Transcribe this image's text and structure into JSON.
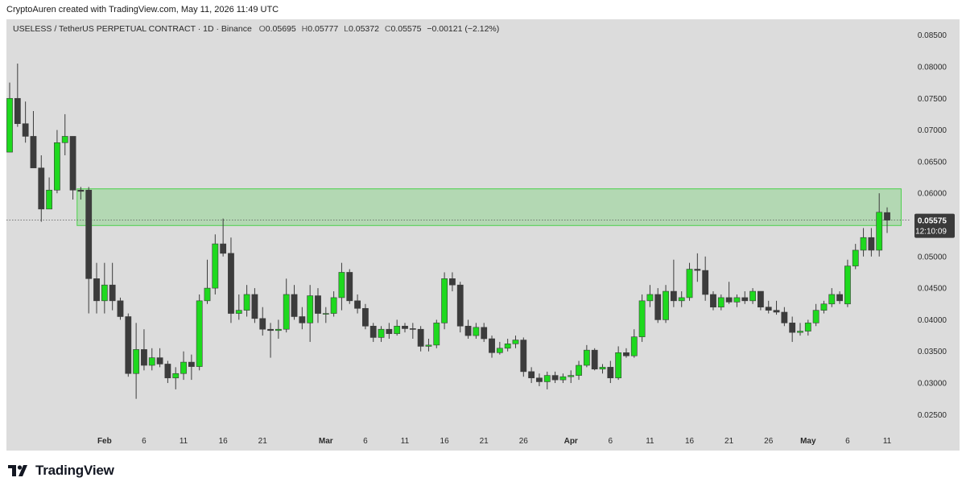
{
  "caption": "CryptoAuren created with TradingView.com, May 11, 2026 11:49 UTC",
  "legend": {
    "symbol": "USELESS / TetherUS PERPETUAL CONTRACT · 1D · Binance",
    "o_label": "O",
    "o": "0.05695",
    "h_label": "H",
    "h": "0.05777",
    "l_label": "L",
    "l": "0.05372",
    "c_label": "C",
    "c": "0.05575",
    "change": "−0.00121 (−2.12%)"
  },
  "brand": {
    "name": "TradingView",
    "logo": "tradingview-logo"
  },
  "chart_data": {
    "type": "candlestick",
    "ylim": [
      0.0225,
      0.0875
    ],
    "y_ticks": [
      "0.08500",
      "0.08000",
      "0.07500",
      "0.07000",
      "0.06500",
      "0.06000",
      "0.05500",
      "0.05000",
      "0.04500",
      "0.04000",
      "0.03500",
      "0.03000",
      "0.02500"
    ],
    "x_ticks": [
      {
        "label": "21",
        "date": "2025-12-21",
        "bold": false
      },
      {
        "label": "26",
        "date": "2025-12-26",
        "bold": false
      },
      {
        "label": "Feb",
        "date": "2026-02-01",
        "bold": true
      },
      {
        "label": "6",
        "date": "2026-02-06",
        "bold": false
      },
      {
        "label": "11",
        "date": "2026-02-11",
        "bold": false
      },
      {
        "label": "16",
        "date": "2026-02-16",
        "bold": false
      },
      {
        "label": "21",
        "date": "2026-02-21",
        "bold": false
      },
      {
        "label": "Mar",
        "date": "2026-03-01",
        "bold": true
      },
      {
        "label": "6",
        "date": "2026-03-06",
        "bold": false
      },
      {
        "label": "11",
        "date": "2026-03-11",
        "bold": false
      },
      {
        "label": "16",
        "date": "2026-03-16",
        "bold": false
      },
      {
        "label": "21",
        "date": "2026-03-21",
        "bold": false
      },
      {
        "label": "26",
        "date": "2026-03-26",
        "bold": false
      },
      {
        "label": "Apr",
        "date": "2026-04-01",
        "bold": true
      },
      {
        "label": "6",
        "date": "2026-04-06",
        "bold": false
      },
      {
        "label": "11",
        "date": "2026-04-11",
        "bold": false
      },
      {
        "label": "16",
        "date": "2026-04-16",
        "bold": false
      },
      {
        "label": "21",
        "date": "2026-04-21",
        "bold": false
      },
      {
        "label": "26",
        "date": "2026-04-26",
        "bold": false
      },
      {
        "label": "May",
        "date": "2026-05-01",
        "bold": true
      },
      {
        "label": "6",
        "date": "2026-05-06",
        "bold": false
      },
      {
        "label": "11",
        "date": "2026-05-11",
        "bold": false
      }
    ],
    "candles": [
      {
        "date": "2026-01-20",
        "o": 0.0665,
        "h": 0.0775,
        "l": 0.0665,
        "c": 0.075
      },
      {
        "date": "2026-01-21",
        "o": 0.075,
        "h": 0.0805,
        "l": 0.0705,
        "c": 0.071
      },
      {
        "date": "2026-01-22",
        "o": 0.071,
        "h": 0.0745,
        "l": 0.068,
        "c": 0.069
      },
      {
        "date": "2026-01-23",
        "o": 0.069,
        "h": 0.073,
        "l": 0.064,
        "c": 0.064
      },
      {
        "date": "2026-01-24",
        "o": 0.064,
        "h": 0.066,
        "l": 0.0555,
        "c": 0.0575
      },
      {
        "date": "2026-01-25",
        "o": 0.0575,
        "h": 0.0625,
        "l": 0.0575,
        "c": 0.0605
      },
      {
        "date": "2026-01-26",
        "o": 0.0605,
        "h": 0.07,
        "l": 0.06,
        "c": 0.068
      },
      {
        "date": "2026-01-27",
        "o": 0.068,
        "h": 0.0725,
        "l": 0.066,
        "c": 0.069
      },
      {
        "date": "2026-01-28",
        "o": 0.069,
        "h": 0.069,
        "l": 0.059,
        "c": 0.0605
      },
      {
        "date": "2026-01-29",
        "o": 0.0605,
        "h": 0.061,
        "l": 0.059,
        "c": 0.0603
      },
      {
        "date": "2026-01-30",
        "o": 0.0605,
        "h": 0.061,
        "l": 0.041,
        "c": 0.0465
      },
      {
        "date": "2026-01-31",
        "o": 0.0465,
        "h": 0.049,
        "l": 0.041,
        "c": 0.043
      },
      {
        "date": "2026-02-01",
        "o": 0.043,
        "h": 0.049,
        "l": 0.041,
        "c": 0.0455
      },
      {
        "date": "2026-02-02",
        "o": 0.0455,
        "h": 0.049,
        "l": 0.0415,
        "c": 0.043
      },
      {
        "date": "2026-02-03",
        "o": 0.043,
        "h": 0.0435,
        "l": 0.04,
        "c": 0.0405
      },
      {
        "date": "2026-02-04",
        "o": 0.0405,
        "h": 0.041,
        "l": 0.031,
        "c": 0.0315
      },
      {
        "date": "2026-02-05",
        "o": 0.0315,
        "h": 0.0395,
        "l": 0.0275,
        "c": 0.0353
      },
      {
        "date": "2026-02-06",
        "o": 0.0353,
        "h": 0.0385,
        "l": 0.032,
        "c": 0.0328
      },
      {
        "date": "2026-02-07",
        "o": 0.0328,
        "h": 0.0355,
        "l": 0.032,
        "c": 0.034
      },
      {
        "date": "2026-02-08",
        "o": 0.034,
        "h": 0.0355,
        "l": 0.0325,
        "c": 0.033
      },
      {
        "date": "2026-02-09",
        "o": 0.033,
        "h": 0.0335,
        "l": 0.03,
        "c": 0.0308
      },
      {
        "date": "2026-02-10",
        "o": 0.0308,
        "h": 0.0325,
        "l": 0.029,
        "c": 0.0315
      },
      {
        "date": "2026-02-11",
        "o": 0.0315,
        "h": 0.035,
        "l": 0.0305,
        "c": 0.0333
      },
      {
        "date": "2026-02-12",
        "o": 0.0333,
        "h": 0.0345,
        "l": 0.0305,
        "c": 0.0326
      },
      {
        "date": "2026-02-13",
        "o": 0.0326,
        "h": 0.044,
        "l": 0.032,
        "c": 0.043
      },
      {
        "date": "2026-02-14",
        "o": 0.043,
        "h": 0.0495,
        "l": 0.0425,
        "c": 0.045
      },
      {
        "date": "2026-02-15",
        "o": 0.045,
        "h": 0.0535,
        "l": 0.044,
        "c": 0.052
      },
      {
        "date": "2026-02-16",
        "o": 0.052,
        "h": 0.056,
        "l": 0.05,
        "c": 0.0505
      },
      {
        "date": "2026-02-17",
        "o": 0.0505,
        "h": 0.053,
        "l": 0.0395,
        "c": 0.041
      },
      {
        "date": "2026-02-18",
        "o": 0.041,
        "h": 0.044,
        "l": 0.04,
        "c": 0.0415
      },
      {
        "date": "2026-02-19",
        "o": 0.0415,
        "h": 0.0455,
        "l": 0.0405,
        "c": 0.044
      },
      {
        "date": "2026-02-20",
        "o": 0.044,
        "h": 0.045,
        "l": 0.0395,
        "c": 0.0402
      },
      {
        "date": "2026-02-21",
        "o": 0.0402,
        "h": 0.042,
        "l": 0.0375,
        "c": 0.0385
      },
      {
        "date": "2026-02-22",
        "o": 0.0385,
        "h": 0.0395,
        "l": 0.034,
        "c": 0.0383
      },
      {
        "date": "2026-02-23",
        "o": 0.0383,
        "h": 0.04,
        "l": 0.037,
        "c": 0.0385
      },
      {
        "date": "2026-02-24",
        "o": 0.0385,
        "h": 0.0465,
        "l": 0.038,
        "c": 0.044
      },
      {
        "date": "2026-02-25",
        "o": 0.044,
        "h": 0.0455,
        "l": 0.04,
        "c": 0.0405
      },
      {
        "date": "2026-02-26",
        "o": 0.0405,
        "h": 0.042,
        "l": 0.0385,
        "c": 0.0395
      },
      {
        "date": "2026-02-27",
        "o": 0.0395,
        "h": 0.0455,
        "l": 0.0365,
        "c": 0.0438
      },
      {
        "date": "2026-02-28",
        "o": 0.0438,
        "h": 0.045,
        "l": 0.0395,
        "c": 0.041
      },
      {
        "date": "2026-03-01",
        "o": 0.041,
        "h": 0.042,
        "l": 0.0395,
        "c": 0.041
      },
      {
        "date": "2026-03-02",
        "o": 0.041,
        "h": 0.0445,
        "l": 0.0405,
        "c": 0.0435
      },
      {
        "date": "2026-03-03",
        "o": 0.0435,
        "h": 0.049,
        "l": 0.0415,
        "c": 0.0475
      },
      {
        "date": "2026-03-04",
        "o": 0.0475,
        "h": 0.048,
        "l": 0.0425,
        "c": 0.043
      },
      {
        "date": "2026-03-05",
        "o": 0.043,
        "h": 0.044,
        "l": 0.041,
        "c": 0.0418
      },
      {
        "date": "2026-03-06",
        "o": 0.0418,
        "h": 0.0425,
        "l": 0.0385,
        "c": 0.039
      },
      {
        "date": "2026-03-07",
        "o": 0.039,
        "h": 0.0395,
        "l": 0.0365,
        "c": 0.0372
      },
      {
        "date": "2026-03-08",
        "o": 0.0372,
        "h": 0.039,
        "l": 0.0365,
        "c": 0.0385
      },
      {
        "date": "2026-03-09",
        "o": 0.0385,
        "h": 0.0395,
        "l": 0.037,
        "c": 0.0378
      },
      {
        "date": "2026-03-10",
        "o": 0.0378,
        "h": 0.04,
        "l": 0.0375,
        "c": 0.039
      },
      {
        "date": "2026-03-11",
        "o": 0.039,
        "h": 0.0395,
        "l": 0.038,
        "c": 0.0386
      },
      {
        "date": "2026-03-12",
        "o": 0.0386,
        "h": 0.0395,
        "l": 0.037,
        "c": 0.0385
      },
      {
        "date": "2026-03-13",
        "o": 0.0385,
        "h": 0.039,
        "l": 0.035,
        "c": 0.0358
      },
      {
        "date": "2026-03-14",
        "o": 0.0358,
        "h": 0.037,
        "l": 0.035,
        "c": 0.036
      },
      {
        "date": "2026-03-15",
        "o": 0.036,
        "h": 0.04,
        "l": 0.0355,
        "c": 0.0395
      },
      {
        "date": "2026-03-16",
        "o": 0.0395,
        "h": 0.0475,
        "l": 0.0385,
        "c": 0.0465
      },
      {
        "date": "2026-03-17",
        "o": 0.0465,
        "h": 0.0475,
        "l": 0.0445,
        "c": 0.0455
      },
      {
        "date": "2026-03-18",
        "o": 0.0455,
        "h": 0.046,
        "l": 0.038,
        "c": 0.039
      },
      {
        "date": "2026-03-19",
        "o": 0.039,
        "h": 0.04,
        "l": 0.037,
        "c": 0.0375
      },
      {
        "date": "2026-03-20",
        "o": 0.0375,
        "h": 0.0395,
        "l": 0.037,
        "c": 0.0388
      },
      {
        "date": "2026-03-21",
        "o": 0.0388,
        "h": 0.0395,
        "l": 0.0365,
        "c": 0.037
      },
      {
        "date": "2026-03-22",
        "o": 0.037,
        "h": 0.0375,
        "l": 0.034,
        "c": 0.0348
      },
      {
        "date": "2026-03-23",
        "o": 0.0348,
        "h": 0.0365,
        "l": 0.0345,
        "c": 0.0355
      },
      {
        "date": "2026-03-24",
        "o": 0.0355,
        "h": 0.037,
        "l": 0.035,
        "c": 0.0362
      },
      {
        "date": "2026-03-25",
        "o": 0.0362,
        "h": 0.0375,
        "l": 0.0355,
        "c": 0.0368
      },
      {
        "date": "2026-03-26",
        "o": 0.0368,
        "h": 0.0372,
        "l": 0.031,
        "c": 0.0318
      },
      {
        "date": "2026-03-27",
        "o": 0.0318,
        "h": 0.0325,
        "l": 0.03,
        "c": 0.0308
      },
      {
        "date": "2026-03-28",
        "o": 0.0308,
        "h": 0.0315,
        "l": 0.0295,
        "c": 0.0302
      },
      {
        "date": "2026-03-29",
        "o": 0.0302,
        "h": 0.0318,
        "l": 0.029,
        "c": 0.0312
      },
      {
        "date": "2026-03-30",
        "o": 0.0312,
        "h": 0.0318,
        "l": 0.03,
        "c": 0.0305
      },
      {
        "date": "2026-03-31",
        "o": 0.0305,
        "h": 0.0315,
        "l": 0.03,
        "c": 0.031
      },
      {
        "date": "2026-04-01",
        "o": 0.031,
        "h": 0.032,
        "l": 0.03,
        "c": 0.0312
      },
      {
        "date": "2026-04-02",
        "o": 0.0312,
        "h": 0.0335,
        "l": 0.0305,
        "c": 0.0328
      },
      {
        "date": "2026-04-03",
        "o": 0.0328,
        "h": 0.036,
        "l": 0.0325,
        "c": 0.0352
      },
      {
        "date": "2026-04-04",
        "o": 0.0352,
        "h": 0.0355,
        "l": 0.032,
        "c": 0.0322
      },
      {
        "date": "2026-04-05",
        "o": 0.0322,
        "h": 0.033,
        "l": 0.0315,
        "c": 0.0325
      },
      {
        "date": "2026-04-06",
        "o": 0.0325,
        "h": 0.0335,
        "l": 0.03,
        "c": 0.0308
      },
      {
        "date": "2026-04-07",
        "o": 0.0308,
        "h": 0.0358,
        "l": 0.0305,
        "c": 0.0348
      },
      {
        "date": "2026-04-08",
        "o": 0.0348,
        "h": 0.0355,
        "l": 0.034,
        "c": 0.0343
      },
      {
        "date": "2026-04-09",
        "o": 0.0343,
        "h": 0.0385,
        "l": 0.034,
        "c": 0.0373
      },
      {
        "date": "2026-04-10",
        "o": 0.0373,
        "h": 0.044,
        "l": 0.0365,
        "c": 0.043
      },
      {
        "date": "2026-04-11",
        "o": 0.043,
        "h": 0.0455,
        "l": 0.042,
        "c": 0.044
      },
      {
        "date": "2026-04-12",
        "o": 0.044,
        "h": 0.045,
        "l": 0.0395,
        "c": 0.04
      },
      {
        "date": "2026-04-13",
        "o": 0.04,
        "h": 0.0455,
        "l": 0.0395,
        "c": 0.0445
      },
      {
        "date": "2026-04-14",
        "o": 0.0445,
        "h": 0.0495,
        "l": 0.042,
        "c": 0.043
      },
      {
        "date": "2026-04-15",
        "o": 0.043,
        "h": 0.0445,
        "l": 0.042,
        "c": 0.0435
      },
      {
        "date": "2026-04-16",
        "o": 0.0435,
        "h": 0.049,
        "l": 0.043,
        "c": 0.048
      },
      {
        "date": "2026-04-17",
        "o": 0.048,
        "h": 0.0505,
        "l": 0.046,
        "c": 0.0478
      },
      {
        "date": "2026-04-18",
        "o": 0.0478,
        "h": 0.05,
        "l": 0.043,
        "c": 0.044
      },
      {
        "date": "2026-04-19",
        "o": 0.044,
        "h": 0.0445,
        "l": 0.0415,
        "c": 0.042
      },
      {
        "date": "2026-04-20",
        "o": 0.042,
        "h": 0.044,
        "l": 0.0415,
        "c": 0.0435
      },
      {
        "date": "2026-04-21",
        "o": 0.0435,
        "h": 0.046,
        "l": 0.0425,
        "c": 0.0428
      },
      {
        "date": "2026-04-22",
        "o": 0.0428,
        "h": 0.044,
        "l": 0.042,
        "c": 0.0435
      },
      {
        "date": "2026-04-23",
        "o": 0.0435,
        "h": 0.0445,
        "l": 0.0425,
        "c": 0.043
      },
      {
        "date": "2026-04-24",
        "o": 0.043,
        "h": 0.045,
        "l": 0.0425,
        "c": 0.0445
      },
      {
        "date": "2026-04-25",
        "o": 0.0445,
        "h": 0.0445,
        "l": 0.0415,
        "c": 0.042
      },
      {
        "date": "2026-04-26",
        "o": 0.042,
        "h": 0.043,
        "l": 0.041,
        "c": 0.0415
      },
      {
        "date": "2026-04-27",
        "o": 0.0415,
        "h": 0.043,
        "l": 0.0408,
        "c": 0.0412
      },
      {
        "date": "2026-04-28",
        "o": 0.0412,
        "h": 0.042,
        "l": 0.039,
        "c": 0.0395
      },
      {
        "date": "2026-04-29",
        "o": 0.0395,
        "h": 0.0405,
        "l": 0.0365,
        "c": 0.038
      },
      {
        "date": "2026-04-30",
        "o": 0.038,
        "h": 0.0395,
        "l": 0.0375,
        "c": 0.0382
      },
      {
        "date": "2026-05-01",
        "o": 0.0382,
        "h": 0.04,
        "l": 0.0375,
        "c": 0.0395
      },
      {
        "date": "2026-05-02",
        "o": 0.0395,
        "h": 0.0425,
        "l": 0.039,
        "c": 0.0415
      },
      {
        "date": "2026-05-03",
        "o": 0.0415,
        "h": 0.043,
        "l": 0.041,
        "c": 0.0425
      },
      {
        "date": "2026-05-04",
        "o": 0.0425,
        "h": 0.045,
        "l": 0.042,
        "c": 0.044
      },
      {
        "date": "2026-05-05",
        "o": 0.044,
        "h": 0.0445,
        "l": 0.0425,
        "c": 0.043
      },
      {
        "date": "2026-05-06",
        "o": 0.0425,
        "h": 0.0495,
        "l": 0.042,
        "c": 0.0485
      },
      {
        "date": "2026-05-07",
        "o": 0.0485,
        "h": 0.052,
        "l": 0.048,
        "c": 0.051
      },
      {
        "date": "2026-05-08",
        "o": 0.051,
        "h": 0.0545,
        "l": 0.05,
        "c": 0.053
      },
      {
        "date": "2026-05-09",
        "o": 0.053,
        "h": 0.0545,
        "l": 0.05,
        "c": 0.051
      },
      {
        "date": "2026-05-10",
        "o": 0.051,
        "h": 0.06,
        "l": 0.05,
        "c": 0.057
      },
      {
        "date": "2026-05-11",
        "o": 0.05695,
        "h": 0.05777,
        "l": 0.05372,
        "c": 0.05575
      }
    ],
    "zone": {
      "start": "2026-01-29",
      "end": "2026-05-12",
      "low": 0.0549,
      "high": 0.0607,
      "color": "#4cd04c"
    },
    "last_price": {
      "label": "0.05575",
      "value": 0.05575,
      "countdown": "12:10:09"
    },
    "colors": {
      "up": "#1ed91e",
      "down": "#3c3c3c",
      "wick": "#3c3c3c",
      "background": "#dcdcdc"
    }
  }
}
